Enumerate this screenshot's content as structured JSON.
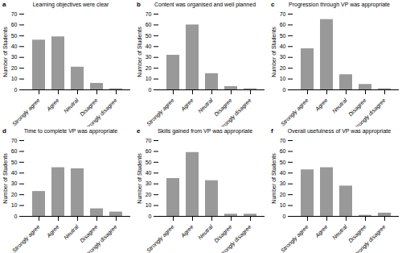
{
  "chart_data": [
    {
      "type": "bar",
      "title": "Learning objectives were clear",
      "annotations": [
        "a"
      ],
      "categories": [
        "Strongly agree",
        "Agree",
        "Neutral",
        "Disagree",
        "Strongly disagree"
      ],
      "values": [
        46,
        49,
        21,
        6,
        1
      ],
      "color": "#999999",
      "ylabel": "Number of Students",
      "ylim": [
        0,
        70
      ],
      "yticks": [
        0,
        10,
        20,
        30,
        40,
        50,
        60,
        70
      ]
    },
    {
      "type": "bar",
      "title": "Content was organised and well planned",
      "annotations": [
        "b"
      ],
      "categories": [
        "Strongly agree",
        "Agree",
        "Neutral",
        "Disagree",
        "Strongly disagree"
      ],
      "values": [
        32,
        60,
        15,
        3,
        1
      ],
      "color": "#999999",
      "ylabel": "Number of Students",
      "ylim": [
        0,
        70
      ],
      "yticks": [
        0,
        10,
        20,
        30,
        40,
        50,
        60,
        70
      ]
    },
    {
      "type": "bar",
      "title": "Progression through VP was appropriate",
      "annotations": [
        "c"
      ],
      "categories": [
        "Strongly agree",
        "Agree",
        "Neutral",
        "Disagree",
        "Strongly disagree"
      ],
      "values": [
        38,
        65,
        14,
        5,
        1
      ],
      "color": "#999999",
      "ylabel": "Number of Students",
      "ylim": [
        0,
        70
      ],
      "yticks": [
        0,
        10,
        20,
        30,
        40,
        50,
        60,
        70
      ]
    },
    {
      "type": "bar",
      "title": "Time to complete VP was appropriate",
      "annotations": [
        "d"
      ],
      "categories": [
        "Strongly agree",
        "Agree",
        "Neutral",
        "Disagree",
        "Strongly disagree"
      ],
      "values": [
        23,
        45,
        44,
        7,
        4
      ],
      "color": "#999999",
      "ylabel": "Number of Students",
      "ylim": [
        0,
        70
      ],
      "yticks": [
        0,
        10,
        20,
        30,
        40,
        50,
        60,
        70
      ]
    },
    {
      "type": "bar",
      "title": "Skills gained from VP was appropriate",
      "annotations": [
        "e"
      ],
      "categories": [
        "Strongly agree",
        "Agree",
        "Neutral",
        "Disagree",
        "Strongly disagree"
      ],
      "values": [
        35,
        59,
        33,
        2,
        2
      ],
      "color": "#999999",
      "ylabel": "Number of Students",
      "ylim": [
        0,
        70
      ],
      "yticks": [
        0,
        10,
        20,
        30,
        40,
        50,
        60,
        70
      ]
    },
    {
      "type": "bar",
      "title": "Overall usefulness of VP was appropriate",
      "annotations": [
        "f"
      ],
      "categories": [
        "Strongly agree",
        "Agree",
        "Neutral",
        "Disagree",
        "Strongly disagree"
      ],
      "values": [
        43,
        45,
        28,
        1,
        3
      ],
      "color": "#999999",
      "ylabel": "Number of Students",
      "ylim": [
        0,
        70
      ],
      "yticks": [
        0,
        10,
        20,
        30,
        40,
        50,
        60,
        70
      ]
    }
  ]
}
